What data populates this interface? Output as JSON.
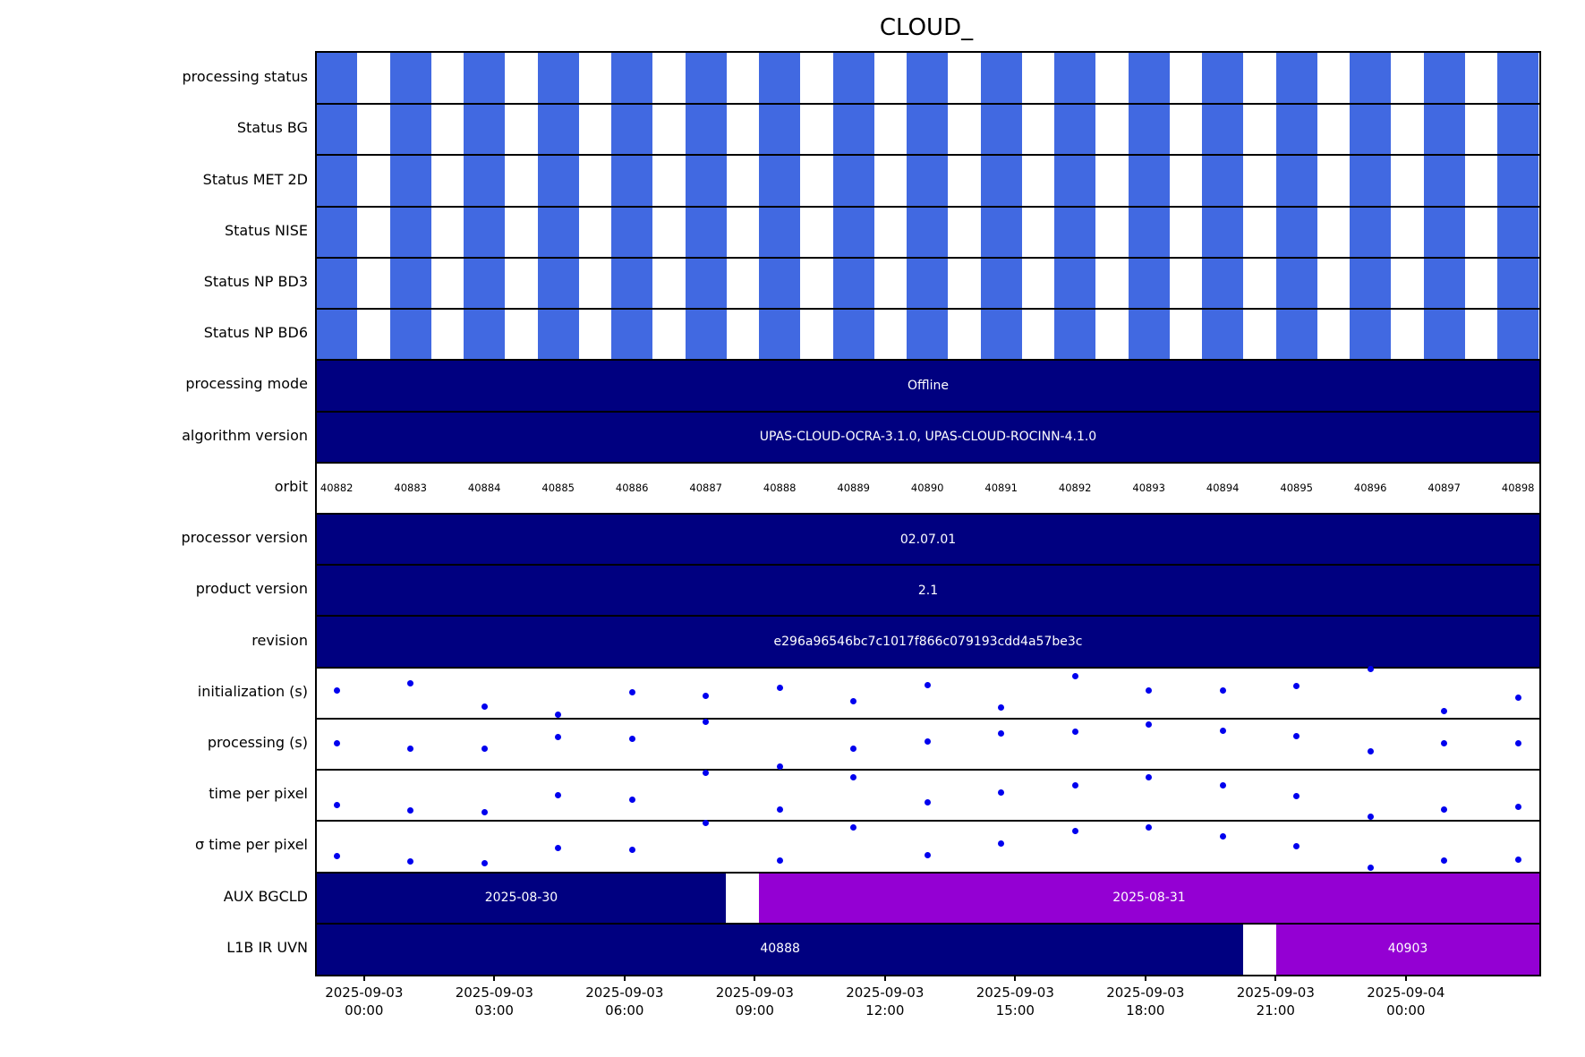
{
  "title": "CLOUD_",
  "colors": {
    "stripe_blue": "#4169E1",
    "navy": "#000080",
    "purple": "#9400D3",
    "dot_blue": "#0000EE",
    "background": "#FFFFFF",
    "bar_text": "#FFFFFF",
    "text": "#000000"
  },
  "chart_data": {
    "type": "timeline",
    "title": "CLOUD_",
    "legend": "none",
    "grid": "off",
    "x_axis": {
      "ticks": [
        {
          "date": "2025-09-03",
          "time": "00:00"
        },
        {
          "date": "2025-09-03",
          "time": "03:00"
        },
        {
          "date": "2025-09-03",
          "time": "06:00"
        },
        {
          "date": "2025-09-03",
          "time": "09:00"
        },
        {
          "date": "2025-09-03",
          "time": "12:00"
        },
        {
          "date": "2025-09-03",
          "time": "15:00"
        },
        {
          "date": "2025-09-03",
          "time": "18:00"
        },
        {
          "date": "2025-09-03",
          "time": "21:00"
        },
        {
          "date": "2025-09-04",
          "time": "00:00"
        }
      ]
    },
    "orbits": [
      40882,
      40883,
      40884,
      40885,
      40886,
      40887,
      40888,
      40889,
      40890,
      40891,
      40892,
      40893,
      40894,
      40895,
      40896,
      40897,
      40898
    ],
    "rows": [
      {
        "kind": "stripes",
        "label": "processing status"
      },
      {
        "kind": "stripes",
        "label": "Status BG"
      },
      {
        "kind": "stripes",
        "label": "Status MET 2D"
      },
      {
        "kind": "stripes",
        "label": "Status NISE"
      },
      {
        "kind": "stripes",
        "label": "Status NP BD3"
      },
      {
        "kind": "stripes",
        "label": "Status NP BD6"
      },
      {
        "kind": "bar",
        "label": "processing mode",
        "segments": [
          {
            "text": "Offline",
            "color": "navy",
            "from": 0,
            "to": 1
          }
        ]
      },
      {
        "kind": "bar",
        "label": "algorithm version",
        "segments": [
          {
            "text": "UPAS-CLOUD-OCRA-3.1.0, UPAS-CLOUD-ROCINN-4.1.0",
            "color": "navy",
            "from": 0,
            "to": 1
          }
        ]
      },
      {
        "kind": "orbits",
        "label": "orbit"
      },
      {
        "kind": "bar",
        "label": "processor version",
        "segments": [
          {
            "text": "02.07.01",
            "color": "navy",
            "from": 0,
            "to": 1
          }
        ]
      },
      {
        "kind": "bar",
        "label": "product version",
        "segments": [
          {
            "text": "2.1",
            "color": "navy",
            "from": 0,
            "to": 1
          }
        ]
      },
      {
        "kind": "bar",
        "label": "revision",
        "segments": [
          {
            "text": "e296a96546bc7c1017f866c079193cdd4a57be3c",
            "color": "navy",
            "from": 0,
            "to": 1
          }
        ]
      },
      {
        "kind": "scatter",
        "label": "initialization (s)",
        "values": [
          0.55,
          0.68,
          0.23,
          0.07,
          0.51,
          0.45,
          0.6,
          0.33,
          0.65,
          0.22,
          0.83,
          0.55,
          0.54,
          0.64,
          0.96,
          0.15,
          0.4
        ]
      },
      {
        "kind": "scatter",
        "label": "processing (s)",
        "values": [
          0.52,
          0.42,
          0.41,
          0.64,
          0.6,
          0.94,
          0.06,
          0.41,
          0.55,
          0.71,
          0.75,
          0.88,
          0.77,
          0.65,
          0.36,
          0.51,
          0.51
        ]
      },
      {
        "kind": "scatter",
        "label": "time per pixel",
        "values": [
          0.32,
          0.21,
          0.17,
          0.5,
          0.41,
          0.94,
          0.23,
          0.86,
          0.36,
          0.56,
          0.69,
          0.85,
          0.69,
          0.49,
          0.08,
          0.23,
          0.27
        ]
      },
      {
        "kind": "scatter",
        "label": "σ time per pixel",
        "values": [
          0.31,
          0.21,
          0.17,
          0.48,
          0.44,
          0.96,
          0.23,
          0.88,
          0.34,
          0.56,
          0.81,
          0.88,
          0.7,
          0.5,
          0.08,
          0.23,
          0.25
        ]
      },
      {
        "kind": "bar",
        "label": "AUX BGCLD",
        "segments": [
          {
            "text": "2025-08-30",
            "color": "navy",
            "from": 0,
            "to": 0.3345
          },
          {
            "text": "2025-08-31",
            "color": "purple",
            "from": 0.3616,
            "to": 1
          }
        ]
      },
      {
        "kind": "bar",
        "label": "L1B IR UVN",
        "segments": [
          {
            "text": "40888",
            "color": "navy",
            "from": 0,
            "to": 0.7579
          },
          {
            "text": "40903",
            "color": "purple",
            "from": 0.7848,
            "to": 1
          }
        ]
      }
    ]
  }
}
